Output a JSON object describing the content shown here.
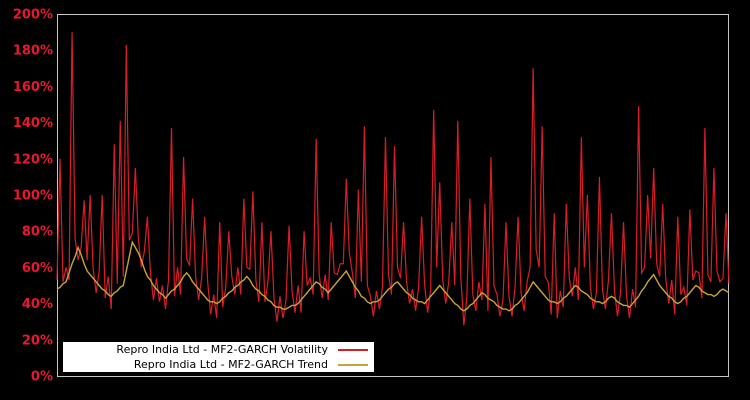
{
  "chart": {
    "background": "#000000",
    "border_color": "#c6c6c6",
    "axis_label_color": "#e8192e"
  },
  "legend": {
    "items": [
      {
        "label": "Repro India Ltd - MF2-GARCH Volatility",
        "color": "#d91d28"
      },
      {
        "label": "Repro India Ltd - MF2-GARCH Trend",
        "color": "#c9a23a"
      }
    ]
  },
  "chart_data": {
    "type": "line",
    "title": "",
    "xlabel": "",
    "ylabel": "",
    "ylim": [
      0,
      200
    ],
    "grid": false,
    "legend_position": "bottom-left",
    "x_tick_labels_visible": false,
    "n_points": 224,
    "y_ticks": [
      {
        "value": 0,
        "label": "0%"
      },
      {
        "value": 20,
        "label": "20%"
      },
      {
        "value": 40,
        "label": "40%"
      },
      {
        "value": 60,
        "label": "60%"
      },
      {
        "value": 80,
        "label": "80%"
      },
      {
        "value": 100,
        "label": "100%"
      },
      {
        "value": 120,
        "label": "120%"
      },
      {
        "value": 140,
        "label": "140%"
      },
      {
        "value": 160,
        "label": "160%"
      },
      {
        "value": 180,
        "label": "180%"
      },
      {
        "value": 200,
        "label": "200%"
      }
    ],
    "series": [
      {
        "name": "Repro India Ltd - MF2-GARCH Volatility",
        "color": "#d91d28",
        "unit": "%",
        "values": [
          53,
          120,
          52,
          60,
          53,
          190,
          76,
          64,
          71,
          97,
          64,
          100,
          59,
          46,
          58,
          100,
          43,
          55,
          37,
          128,
          51,
          141,
          55,
          183,
          75,
          79,
          115,
          76,
          60,
          69,
          88,
          57,
          42,
          54,
          41,
          50,
          37,
          53,
          137,
          44,
          60,
          45,
          121,
          65,
          61,
          98,
          55,
          42,
          54,
          88,
          52,
          34,
          45,
          32,
          85,
          38,
          49,
          80,
          55,
          45,
          60,
          45,
          98,
          60,
          59,
          102,
          53,
          41,
          85,
          41,
          52,
          80,
          43,
          30,
          44,
          32,
          42,
          83,
          47,
          35,
          50,
          35,
          80,
          50,
          54,
          45,
          131,
          56,
          43,
          56,
          42,
          85,
          57,
          56,
          62,
          62,
          109,
          68,
          57,
          43,
          103,
          52,
          138,
          50,
          44,
          33,
          47,
          37,
          49,
          132,
          56,
          45,
          127,
          60,
          54,
          85,
          52,
          40,
          48,
          36,
          49,
          88,
          50,
          35,
          48,
          147,
          60,
          107,
          53,
          40,
          52,
          85,
          50,
          141,
          55,
          28,
          43,
          98,
          45,
          36,
          52,
          42,
          95,
          36,
          121,
          50,
          45,
          33,
          42,
          85,
          44,
          33,
          49,
          88,
          46,
          36,
          52,
          60,
          170,
          70,
          60,
          138,
          55,
          52,
          34,
          90,
          32,
          47,
          38,
          95,
          54,
          44,
          60,
          42,
          132,
          60,
          100,
          49,
          37,
          46,
          110,
          48,
          37,
          53,
          90,
          47,
          33,
          46,
          85,
          44,
          32,
          48,
          38,
          149,
          57,
          60,
          100,
          65,
          115,
          62,
          55,
          95,
          54,
          40,
          53,
          34,
          88,
          45,
          49,
          39,
          92,
          53,
          58,
          57,
          43,
          137,
          56,
          52,
          115,
          58,
          52,
          54,
          90,
          51
        ]
      },
      {
        "name": "Repro India Ltd - MF2-GARCH Trend",
        "color": "#c9a23a",
        "unit": "%",
        "values": [
          48,
          49,
          51,
          52,
          57,
          62,
          66,
          71,
          67,
          62,
          58,
          56,
          54,
          52,
          50,
          48,
          47,
          45,
          44,
          46,
          47,
          49,
          50,
          58,
          66,
          74,
          71,
          68,
          64,
          59,
          55,
          53,
          50,
          48,
          46,
          45,
          43,
          45,
          47,
          48,
          50,
          52,
          55,
          57,
          55,
          52,
          50,
          48,
          46,
          44,
          42,
          41,
          41,
          40,
          41,
          43,
          44,
          46,
          47,
          49,
          50,
          52,
          53,
          55,
          53,
          50,
          48,
          47,
          45,
          44,
          42,
          41,
          39,
          38,
          38,
          37,
          37,
          38,
          39,
          39,
          40,
          42,
          44,
          46,
          48,
          50,
          52,
          51,
          49,
          48,
          46,
          48,
          50,
          52,
          54,
          56,
          58,
          55,
          52,
          49,
          47,
          44,
          43,
          41,
          40,
          41,
          41,
          42,
          44,
          46,
          48,
          49,
          51,
          52,
          50,
          48,
          46,
          45,
          43,
          42,
          41,
          41,
          40,
          42,
          44,
          46,
          48,
          50,
          48,
          46,
          44,
          42,
          40,
          39,
          37,
          36,
          37,
          39,
          40,
          42,
          44,
          46,
          45,
          43,
          42,
          41,
          39,
          38,
          37,
          37,
          36,
          37,
          39,
          40,
          42,
          44,
          46,
          49,
          52,
          50,
          48,
          46,
          44,
          42,
          41,
          41,
          40,
          41,
          43,
          44,
          46,
          48,
          50,
          49,
          47,
          46,
          45,
          43,
          42,
          41,
          41,
          40,
          41,
          43,
          44,
          43,
          41,
          40,
          39,
          39,
          38,
          40,
          42,
          44,
          47,
          49,
          52,
          54,
          56,
          53,
          50,
          48,
          46,
          44,
          43,
          41,
          40,
          41,
          43,
          44,
          46,
          48,
          50,
          49,
          47,
          46,
          45,
          45,
          44,
          45,
          47,
          48,
          47,
          46
        ]
      }
    ]
  }
}
